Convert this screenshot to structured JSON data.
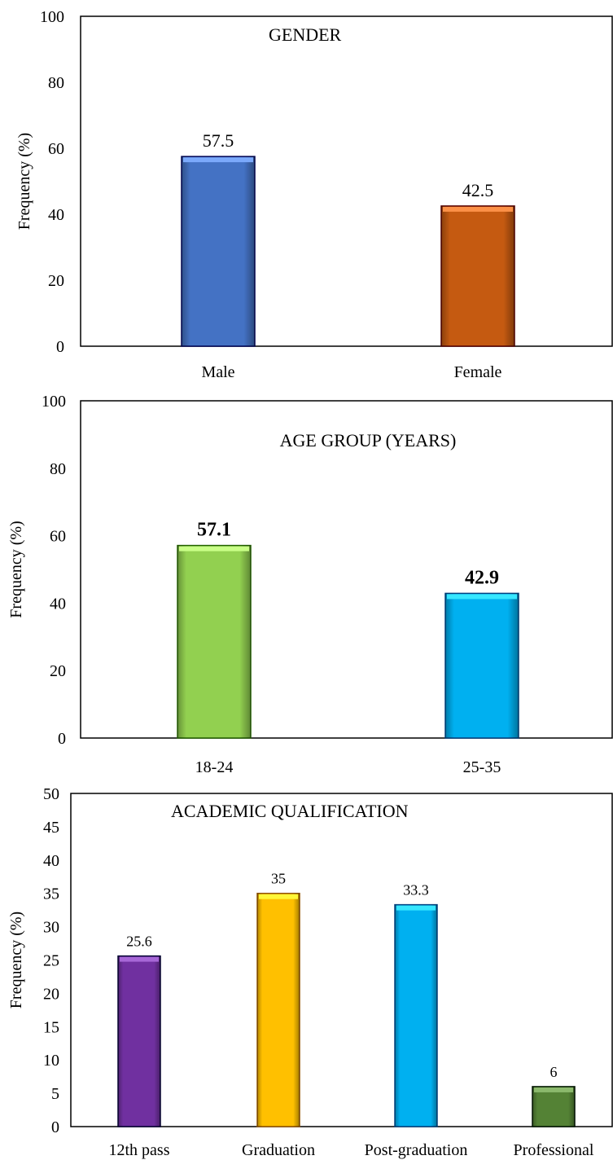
{
  "chart_data": [
    {
      "type": "bar",
      "title": "GENDER",
      "ylabel": "Frequency (%)",
      "xlabel": "",
      "categories": [
        "Male",
        "Female"
      ],
      "values": [
        57.5,
        42.5
      ],
      "data_labels": [
        "57.5",
        "42.5"
      ],
      "colors": [
        "#4472C4",
        "#C55A11"
      ],
      "ylim": [
        0,
        100
      ],
      "yticks": [
        "0",
        "20",
        "40",
        "60",
        "80",
        "100"
      ],
      "grid": false,
      "legend": "none"
    },
    {
      "type": "bar",
      "title": "AGE GROUP (YEARS)",
      "ylabel": "Frequency (%)",
      "xlabel": "",
      "categories": [
        "18-24",
        "25-35"
      ],
      "values": [
        57.1,
        42.9
      ],
      "data_labels": [
        "57.1",
        "42.9"
      ],
      "colors": [
        "#92D050",
        "#00B0F0"
      ],
      "ylim": [
        0,
        100
      ],
      "yticks": [
        "0",
        "20",
        "40",
        "60",
        "80",
        "100"
      ],
      "grid": false,
      "legend": "none"
    },
    {
      "type": "bar",
      "title": "ACADEMIC QUALIFICATION",
      "ylabel": "Frequency (%)",
      "xlabel": "",
      "categories": [
        "12th pass",
        "Graduation",
        "Post-graduation",
        "Professional"
      ],
      "values": [
        25.6,
        35,
        33.3,
        6
      ],
      "data_labels": [
        "25.6",
        "35",
        "33.3",
        "6"
      ],
      "colors": [
        "#7030A0",
        "#FFC000",
        "#00B0F0",
        "#548235"
      ],
      "ylim": [
        0,
        50
      ],
      "yticks": [
        "0",
        "5",
        "10",
        "15",
        "20",
        "25",
        "30",
        "35",
        "40",
        "45",
        "50"
      ],
      "grid": false,
      "legend": "none"
    }
  ]
}
